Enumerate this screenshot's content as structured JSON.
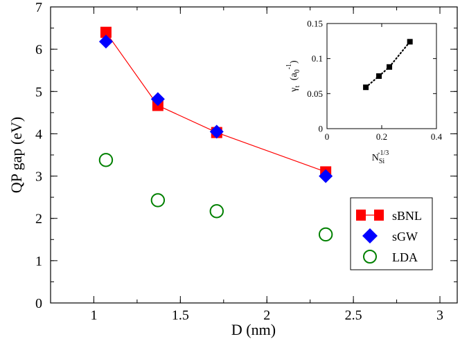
{
  "chart_data": [
    {
      "type": "scatter",
      "title": "",
      "xlabel": "D (nm)",
      "ylabel": "QP gap (eV)",
      "xlim": [
        0.75,
        3.1
      ],
      "ylim": [
        0,
        7
      ],
      "xticks": [
        1,
        1.5,
        2,
        2.5,
        3
      ],
      "xtick_labels": [
        "1",
        "1.5",
        "2",
        "2.5",
        "3"
      ],
      "yticks": [
        0,
        1,
        2,
        3,
        4,
        5,
        6,
        7
      ],
      "ytick_labels": [
        "0",
        "1",
        "2",
        "3",
        "4",
        "5",
        "6",
        "7"
      ],
      "legend_position": "lower-right",
      "series": [
        {
          "name": "sBNL",
          "marker": "square",
          "line": true,
          "color": "#ff0000",
          "line_color": "#ff0000",
          "x": [
            1.07,
            1.37,
            1.71,
            2.34
          ],
          "y": [
            6.4,
            4.67,
            4.03,
            3.1
          ]
        },
        {
          "name": "sGW",
          "marker": "diamond",
          "line": false,
          "color": "#0000ff",
          "x": [
            1.07,
            1.37,
            1.71,
            2.34
          ],
          "y": [
            6.18,
            4.82,
            4.05,
            3.0
          ]
        },
        {
          "name": "LDA",
          "marker": "circle-open",
          "line": false,
          "color": "#008000",
          "x": [
            1.07,
            1.37,
            1.71,
            2.34
          ],
          "y": [
            3.38,
            2.43,
            2.17,
            1.62
          ]
        }
      ]
    },
    {
      "type": "scatter",
      "title": "",
      "xlabel": "N_Si^-1/3",
      "ylabel": "γ_t (a_0^-1)",
      "xlim": [
        0,
        0.4
      ],
      "ylim": [
        0,
        0.15
      ],
      "xticks": [
        0,
        0.2,
        0.4
      ],
      "xtick_labels": [
        "0",
        "0.2",
        "0.4"
      ],
      "yticks": [
        0,
        0.05,
        0.1,
        0.15
      ],
      "ytick_labels": [
        "0",
        "0.05",
        "0.1",
        "0.15"
      ],
      "series": [
        {
          "name": "gamma_t",
          "marker": "square",
          "line": "dotted",
          "color": "#000000",
          "x": [
            0.142,
            0.19,
            0.228,
            0.303
          ],
          "y": [
            0.059,
            0.075,
            0.088,
            0.124
          ]
        }
      ]
    }
  ]
}
